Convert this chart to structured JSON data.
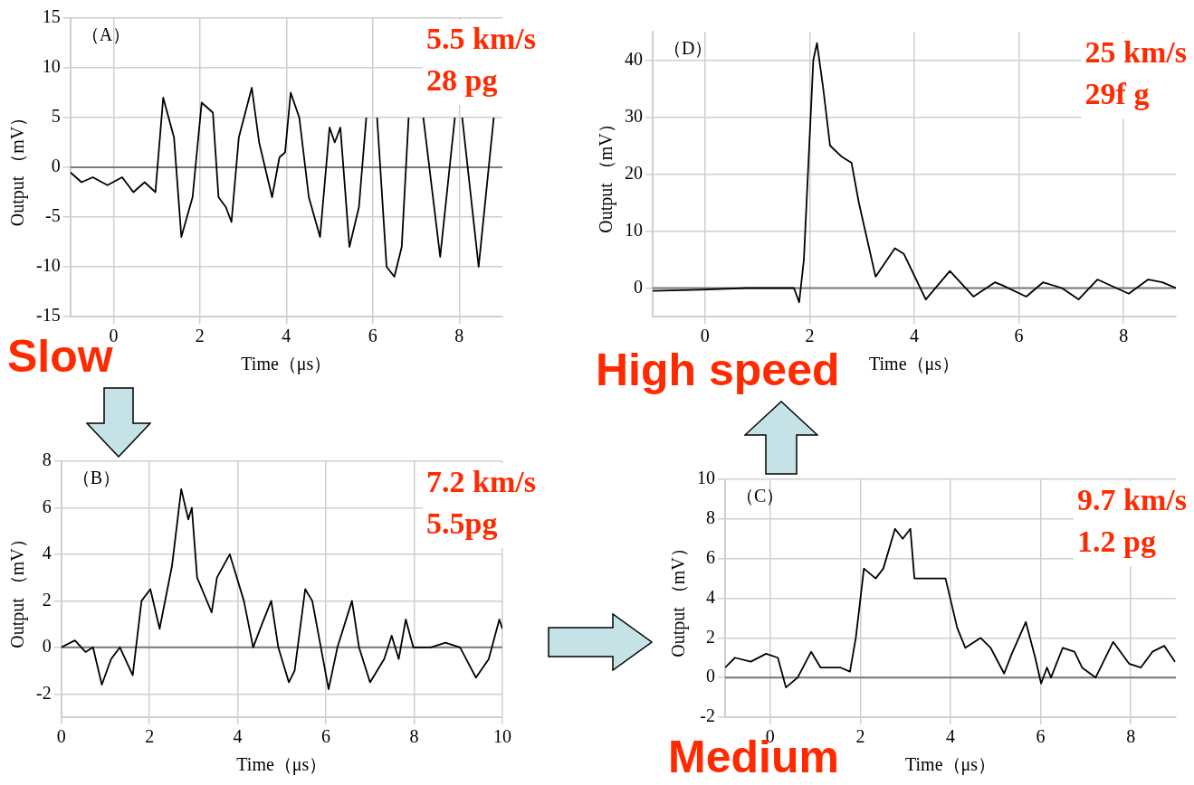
{
  "chart_data": [
    {
      "type": "line",
      "xlabel": "Time（μs）",
      "ylabel": "Output （mV）",
      "color": "#000000",
      "grid": true,
      "xlim": [
        -1,
        9
      ],
      "xticks": [
        0,
        2,
        4,
        6,
        8
      ],
      "ylim": [
        -15,
        15
      ],
      "yticks": [
        -15,
        -10,
        -5,
        0,
        5,
        10,
        15
      ],
      "ref_lines": [
        {
          "axis": "y",
          "value": 0
        }
      ],
      "annotations": [
        "（A）",
        "5.5 km/s",
        "28 pg",
        "Slow"
      ],
      "x": [
        -1,
        -0.74,
        -0.48,
        -0.14,
        0.2,
        0.46,
        0.72,
        0.97,
        1.15,
        1.4,
        1.57,
        1.83,
        2.04,
        2.3,
        2.43,
        2.6,
        2.73,
        2.9,
        3.2,
        3.37,
        3.67,
        3.84,
        3.97,
        4.1,
        4.3,
        4.52,
        4.78,
        5.0,
        5.12,
        5.25,
        5.46,
        5.68,
        5.85,
        5.97,
        6.1,
        6.32,
        6.5,
        6.67,
        6.83,
        7.0,
        7.17,
        7.56,
        7.9,
        7.98,
        8.07,
        8.45,
        8.8
      ],
      "values": [
        -0.5,
        -1.5,
        -1,
        -1.8,
        -1,
        -2.5,
        -1.5,
        -2.5,
        7,
        3,
        -7,
        -3,
        6.5,
        5.5,
        -3,
        -4,
        -5.5,
        3,
        8,
        2.5,
        -3,
        1,
        1.5,
        7.5,
        5,
        -3,
        -7,
        4,
        2.5,
        4,
        -8,
        -4,
        5,
        null,
        5,
        -10,
        -11,
        -8,
        5,
        null,
        5,
        -9,
        5,
        null,
        5,
        -10,
        5
      ]
    },
    {
      "type": "line",
      "xlabel": "Time（μs）",
      "ylabel": "Output （mV）",
      "color": "#000000",
      "grid": true,
      "xlim": [
        -1,
        9
      ],
      "xticks": [
        0,
        2,
        4,
        6,
        8
      ],
      "ylim": [
        -5,
        45
      ],
      "yticks": [
        0,
        10,
        20,
        30,
        40
      ],
      "ref_lines": [
        {
          "axis": "y",
          "value": 0
        }
      ],
      "annotations": [
        "（D）",
        "25 km/s",
        "29f g",
        "High speed"
      ],
      "x": [
        -1,
        -0.1,
        0.8,
        1.7,
        1.8,
        1.89,
        2.07,
        2.14,
        2.26,
        2.39,
        2.62,
        2.8,
        2.94,
        3.26,
        3.63,
        3.8,
        4.22,
        4.68,
        5.13,
        5.54,
        5.68,
        6.14,
        6.46,
        6.82,
        7.14,
        7.5,
        8.1,
        8.47,
        8.74,
        9
      ],
      "values": [
        -0.5,
        -0.3,
        0,
        0,
        -2.5,
        5,
        40,
        43,
        35,
        25,
        23,
        22,
        15,
        2,
        7,
        6,
        -2,
        3,
        -1.5,
        1,
        0.5,
        -1.5,
        1,
        0,
        -2,
        1.5,
        -1,
        1.5,
        1,
        0
      ]
    },
    {
      "type": "line",
      "xlabel": "Time（μs）",
      "ylabel": "Output （mV）",
      "color": "#000000",
      "grid": true,
      "xlim": [
        0,
        10
      ],
      "xticks": [
        0,
        2,
        4,
        6,
        8,
        10
      ],
      "ylim": [
        -3,
        8
      ],
      "yticks": [
        -2,
        0,
        2,
        4,
        6,
        8
      ],
      "ref_lines": [
        {
          "axis": "y",
          "value": 0
        }
      ],
      "annotations": [
        "（B）",
        "7.2 km/s",
        "5.5pg"
      ],
      "x": [
        0,
        0.31,
        0.55,
        0.72,
        0.92,
        1.13,
        1.33,
        1.62,
        1.82,
        2.02,
        2.23,
        2.51,
        2.72,
        2.88,
        2.96,
        3.08,
        3.41,
        3.53,
        3.82,
        4.14,
        4.35,
        4.55,
        4.76,
        4.92,
        5.16,
        5.29,
        5.53,
        5.69,
        6.06,
        6.26,
        6.59,
        6.75,
        7.0,
        7.32,
        7.49,
        7.65,
        7.81,
        7.98,
        8.38,
        8.71,
        9.04,
        9.4,
        9.69,
        9.93,
        10
      ],
      "values": [
        0,
        0.3,
        -0.2,
        0,
        -1.6,
        -0.5,
        0,
        -1.2,
        2,
        2.5,
        0.8,
        3.5,
        6.8,
        5.5,
        6,
        3,
        1.5,
        3,
        4,
        2,
        0,
        1,
        2,
        0,
        -1.5,
        -1,
        2.5,
        2,
        -1.8,
        0,
        2,
        0,
        -1.5,
        -0.5,
        0.5,
        -0.5,
        1.2,
        0,
        0,
        0.2,
        0,
        -1.3,
        -0.5,
        1.2,
        0.8
      ]
    },
    {
      "type": "line",
      "xlabel": "Time（μs）",
      "ylabel": "Output （mV）",
      "color": "#000000",
      "grid": true,
      "xlim": [
        -1,
        9
      ],
      "xticks": [
        0,
        2,
        4,
        6,
        8
      ],
      "ylim": [
        -2,
        10
      ],
      "yticks": [
        -2,
        0,
        2,
        4,
        6,
        8,
        10
      ],
      "ref_lines": [
        {
          "axis": "y",
          "value": 0
        }
      ],
      "annotations": [
        "（C）",
        "9.7 km/s",
        "1.2 pg",
        "Medium"
      ],
      "x": [
        -1,
        -0.78,
        -0.43,
        -0.09,
        0.17,
        0.35,
        0.61,
        0.91,
        1.12,
        1.56,
        1.77,
        1.9,
        2.08,
        2.34,
        2.51,
        2.77,
        2.94,
        3.11,
        3.2,
        3.63,
        3.89,
        4.15,
        4.33,
        4.67,
        4.89,
        5.19,
        5.36,
        5.67,
        5.88,
        6.01,
        6.14,
        6.23,
        6.49,
        6.75,
        6.92,
        7.22,
        7.61,
        7.96,
        8.22,
        8.48,
        8.74,
        8.98
      ],
      "values": [
        0.5,
        1,
        0.8,
        1.2,
        1,
        -0.5,
        0,
        1.3,
        0.5,
        0.5,
        0.3,
        2,
        5.5,
        5,
        5.5,
        7.5,
        7,
        7.5,
        5,
        5,
        5,
        2.5,
        1.5,
        2,
        1.5,
        0.2,
        1.2,
        2.8,
        1,
        -0.3,
        0.5,
        0,
        1.5,
        1.3,
        0.5,
        0,
        1.8,
        0.7,
        0.5,
        1.3,
        1.6,
        0.8
      ]
    }
  ]
}
